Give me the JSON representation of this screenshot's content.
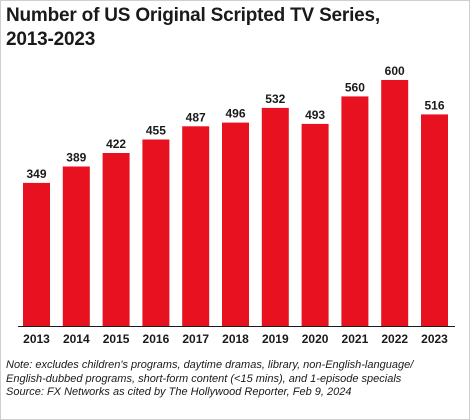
{
  "title_line1": "Number of US Original Scripted TV Series,",
  "title_line2": "2013-2023",
  "chart_data": {
    "type": "bar",
    "categories": [
      "2013",
      "2014",
      "2015",
      "2016",
      "2017",
      "2018",
      "2019",
      "2020",
      "2021",
      "2022",
      "2023"
    ],
    "values": [
      349,
      389,
      422,
      455,
      487,
      496,
      532,
      493,
      560,
      600,
      516
    ],
    "ylim": [
      0,
      600
    ],
    "grid": false,
    "bar_color": "#e8111f"
  },
  "footnote": {
    "line1": "Note: excludes children's programs, daytime dramas, library, non-English-language/",
    "line2": "English-dubbed programs, short-form content (<15 mins), and 1-episode specials",
    "line3": "Source: FX Networks as cited by The Hollywood Reporter, Feb 9, 2024"
  }
}
